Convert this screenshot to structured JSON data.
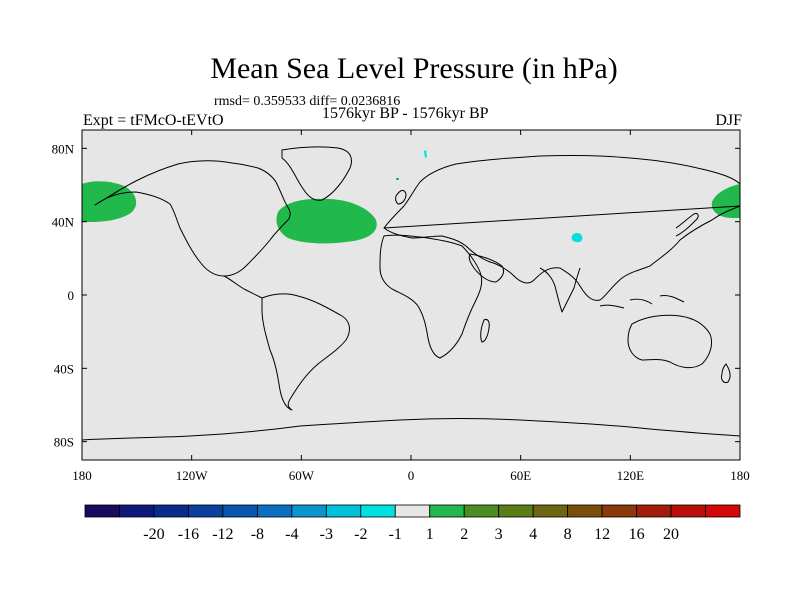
{
  "title": "Mean Sea Level Pressure (in hPa)",
  "stats": "rmsd= 0.359533 diff= 0.0236816",
  "period": "1576kyr BP - 1576kyr BP",
  "experiment": "Expt = tFMcO-tEVtO",
  "season": "DJF",
  "map": {
    "background_color": "#e6e6e6",
    "lon_range": [
      -180,
      180
    ],
    "lat_range": [
      -90,
      90
    ],
    "lon_ticks": [
      {
        "value": -180,
        "label": "180"
      },
      {
        "value": -120,
        "label": "120W"
      },
      {
        "value": -60,
        "label": "60W"
      },
      {
        "value": 0,
        "label": "0"
      },
      {
        "value": 60,
        "label": "60E"
      },
      {
        "value": 120,
        "label": "120E"
      },
      {
        "value": 180,
        "label": "180"
      }
    ],
    "lat_ticks": [
      {
        "value": 80,
        "label": "80N"
      },
      {
        "value": 40,
        "label": "40N"
      },
      {
        "value": 0,
        "label": "0"
      },
      {
        "value": -40,
        "label": "40S"
      },
      {
        "value": -80,
        "label": "80S"
      }
    ]
  },
  "colorbar": {
    "colors": [
      "#1a0a5e",
      "#0d1a7a",
      "#0a2a8c",
      "#0a3f9e",
      "#0b55b0",
      "#0a6fc0",
      "#0a95cf",
      "#00c2d8",
      "#00e0e0",
      "#e6e6e6",
      "#21b94c",
      "#4a8e22",
      "#5a7d16",
      "#6e6610",
      "#7a4e0a",
      "#8a3a0a",
      "#a21e0a",
      "#b80f0a",
      "#d40808"
    ],
    "labels": [
      "-20",
      "-16",
      "-12",
      "-8",
      "-4",
      "-3",
      "-2",
      "-1",
      "1",
      "2",
      "3",
      "4",
      "8",
      "12",
      "16",
      "20"
    ]
  }
}
